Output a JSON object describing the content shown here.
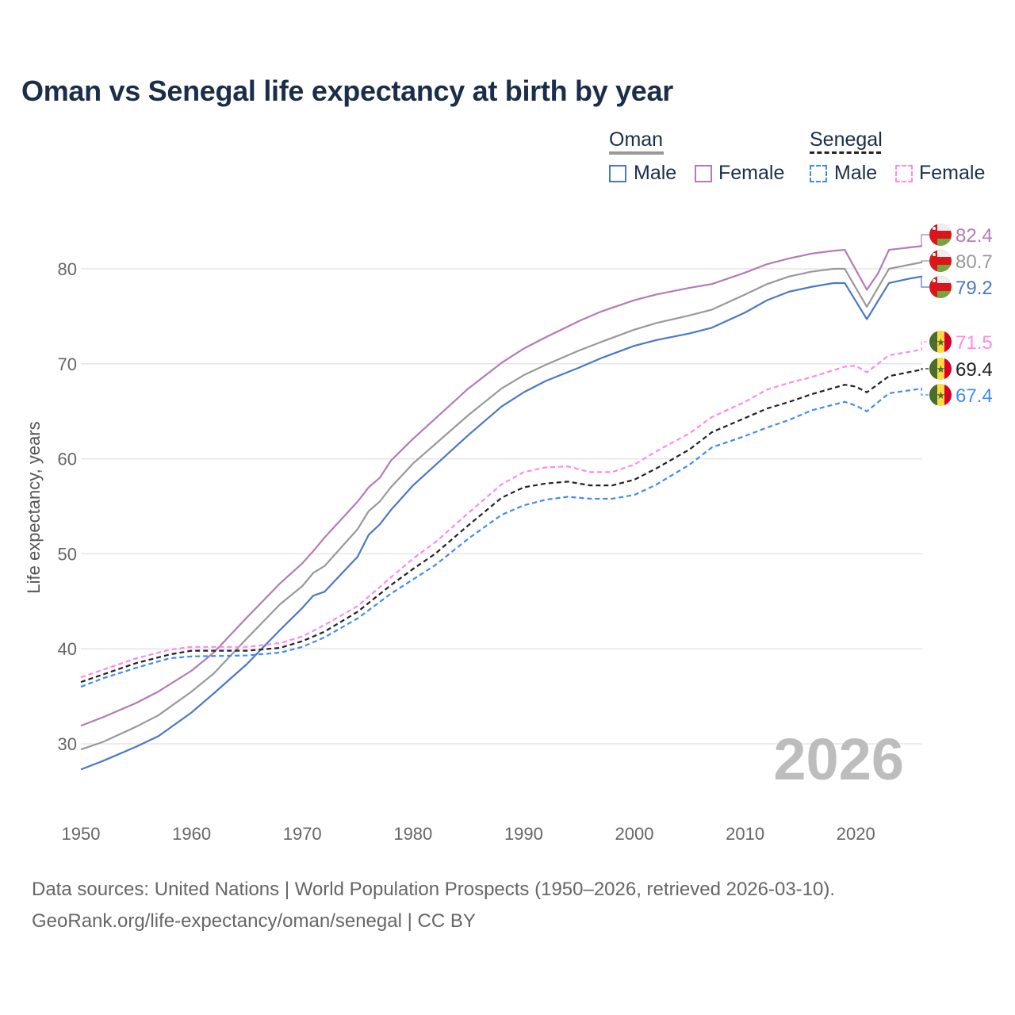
{
  "title": "Oman vs Senegal life expectancy at birth by year",
  "legend": {
    "oman": {
      "label": "Oman",
      "male": "Male",
      "female": "Female"
    },
    "senegal": {
      "label": "Senegal",
      "male": "Male",
      "female": "Female"
    }
  },
  "watermark_year": "2026",
  "footer": {
    "line1": "Data sources: United Nations | World Population Prospects (1950–2026, retrieved 2026-03-10).",
    "line2": "GeoRank.org/life-expectancy/oman/senegal | CC BY"
  },
  "colors": {
    "oman_male": "#4a78c8",
    "oman_both": "#999999",
    "oman_female": "#b57ab8",
    "sen_male": "#3f8cf0",
    "sen_both": "#222222",
    "sen_female": "#ff88ee"
  },
  "chart_data": {
    "type": "line",
    "title": "Oman vs Senegal life expectancy at birth by year",
    "xlabel": "",
    "ylabel": "Life expectancy, years",
    "xlim": [
      1950,
      2026
    ],
    "ylim": [
      30,
      80
    ],
    "x_ticks": [
      "1950",
      "1960",
      "1970",
      "1980",
      "1990",
      "2000",
      "2010",
      "2020"
    ],
    "y_ticks": [
      "30",
      "40",
      "50",
      "60",
      "70",
      "80"
    ],
    "grid": true,
    "series": [
      {
        "name": "Oman Male",
        "key": "oman_male",
        "dashed": false,
        "end_label": "79.2",
        "flag": "oman",
        "x": [
          1950,
          1952,
          1955,
          1957,
          1960,
          1962,
          1965,
          1968,
          1970,
          1971,
          1972,
          1975,
          1976,
          1977,
          1978,
          1980,
          1985,
          1988,
          1990,
          1992,
          1995,
          1997,
          2000,
          2002,
          2005,
          2007,
          2010,
          2012,
          2014,
          2016,
          2018,
          2019,
          2021,
          2023,
          2025,
          2026
        ],
        "y": [
          27.3,
          28.2,
          29.7,
          30.8,
          33.3,
          35.3,
          38.4,
          42,
          44.3,
          45.6,
          46,
          49.7,
          52,
          53.1,
          54.6,
          57.2,
          62.5,
          65.5,
          67,
          68.2,
          69.6,
          70.6,
          71.9,
          72.5,
          73.2,
          73.8,
          75.4,
          76.7,
          77.6,
          78.1,
          78.5,
          78.5,
          74.7,
          78.5,
          79.0,
          79.2
        ]
      },
      {
        "name": "Oman",
        "key": "oman_both",
        "dashed": false,
        "end_label": "80.7",
        "flag": "oman",
        "x": [
          1950,
          1952,
          1955,
          1957,
          1960,
          1962,
          1965,
          1968,
          1970,
          1971,
          1972,
          1975,
          1976,
          1977,
          1978,
          1980,
          1985,
          1988,
          1990,
          1992,
          1995,
          1997,
          2000,
          2002,
          2005,
          2007,
          2010,
          2012,
          2014,
          2016,
          2018,
          2019,
          2021,
          2023,
          2026
        ],
        "y": [
          29.4,
          30.2,
          31.8,
          33.0,
          35.5,
          37.4,
          41.1,
          44.7,
          46.6,
          48,
          48.7,
          52.6,
          54.5,
          55.5,
          57,
          59.5,
          64.6,
          67.4,
          68.8,
          69.9,
          71.4,
          72.3,
          73.6,
          74.3,
          75.1,
          75.7,
          77.3,
          78.4,
          79.2,
          79.7,
          80,
          80,
          76,
          80,
          80.7
        ]
      },
      {
        "name": "Oman Female",
        "key": "oman_female",
        "dashed": false,
        "end_label": "82.4",
        "flag": "oman",
        "x": [
          1950,
          1952,
          1955,
          1957,
          1960,
          1962,
          1965,
          1968,
          1970,
          1971,
          1972,
          1975,
          1976,
          1977,
          1978,
          1980,
          1985,
          1988,
          1990,
          1992,
          1995,
          1997,
          2000,
          2002,
          2005,
          2007,
          2010,
          2012,
          2014,
          2016,
          2018,
          2019,
          2021,
          2022,
          2023,
          2026
        ],
        "y": [
          31.9,
          32.8,
          34.3,
          35.5,
          37.7,
          39.6,
          43.3,
          46.9,
          49,
          50.3,
          51.7,
          55.5,
          57,
          58,
          59.8,
          62.1,
          67.4,
          70.1,
          71.6,
          72.8,
          74.5,
          75.5,
          76.7,
          77.3,
          78.0,
          78.4,
          79.6,
          80.5,
          81.1,
          81.6,
          81.9,
          82,
          77.8,
          79.5,
          82,
          82.4
        ]
      },
      {
        "name": "Senegal Female",
        "key": "sen_female",
        "dashed": true,
        "end_label": "71.5",
        "flag": "senegal",
        "x": [
          1950,
          1952,
          1955,
          1958,
          1960,
          1965,
          1968,
          1970,
          1972,
          1975,
          1978,
          1980,
          1982,
          1985,
          1988,
          1990,
          1992,
          1994,
          1996,
          1998,
          2000,
          2002,
          2005,
          2007,
          2010,
          2012,
          2014,
          2016,
          2019,
          2020,
          2021,
          2023,
          2026
        ],
        "y": [
          37.0,
          37.8,
          39.0,
          39.9,
          40.2,
          40.2,
          40.6,
          41.3,
          42.5,
          44.5,
          47.5,
          49.5,
          51.2,
          54.3,
          57.3,
          58.6,
          59.1,
          59.2,
          58.6,
          58.6,
          59.4,
          60.8,
          62.7,
          64.4,
          66.0,
          67.3,
          68.0,
          68.6,
          69.7,
          69.8,
          69.1,
          70.9,
          71.5
        ]
      },
      {
        "name": "Senegal",
        "key": "sen_both",
        "dashed": true,
        "end_label": "69.4",
        "flag": "senegal",
        "x": [
          1950,
          1952,
          1955,
          1958,
          1960,
          1965,
          1968,
          1970,
          1972,
          1975,
          1978,
          1980,
          1982,
          1985,
          1988,
          1990,
          1992,
          1994,
          1996,
          1998,
          2000,
          2002,
          2005,
          2007,
          2010,
          2012,
          2014,
          2016,
          2019,
          2020,
          2021,
          2023,
          2026
        ],
        "y": [
          36.5,
          37.3,
          38.5,
          39.4,
          39.8,
          39.8,
          40.1,
          40.8,
          41.8,
          43.9,
          46.7,
          48.4,
          50,
          53,
          55.9,
          57,
          57.4,
          57.6,
          57.2,
          57.2,
          57.8,
          59,
          61,
          62.8,
          64.3,
          65.3,
          66,
          66.8,
          67.8,
          67.6,
          67,
          68.7,
          69.4
        ]
      },
      {
        "name": "Senegal Male",
        "key": "sen_male",
        "dashed": true,
        "end_label": "67.4",
        "flag": "senegal",
        "x": [
          1950,
          1952,
          1955,
          1958,
          1960,
          1965,
          1968,
          1970,
          1972,
          1975,
          1978,
          1980,
          1982,
          1985,
          1988,
          1990,
          1992,
          1994,
          1996,
          1998,
          2000,
          2002,
          2005,
          2007,
          2010,
          2012,
          2014,
          2016,
          2019,
          2020,
          2021,
          2023,
          2026
        ],
        "y": [
          36.0,
          36.9,
          38.0,
          39.0,
          39.2,
          39.3,
          39.6,
          40.2,
          41.2,
          43.2,
          45.8,
          47.3,
          48.8,
          51.6,
          54.1,
          55.1,
          55.7,
          56,
          55.8,
          55.8,
          56.2,
          57.3,
          59.4,
          61.2,
          62.4,
          63.3,
          64.1,
          65.1,
          66,
          65.6,
          65,
          66.9,
          67.4
        ]
      }
    ]
  }
}
